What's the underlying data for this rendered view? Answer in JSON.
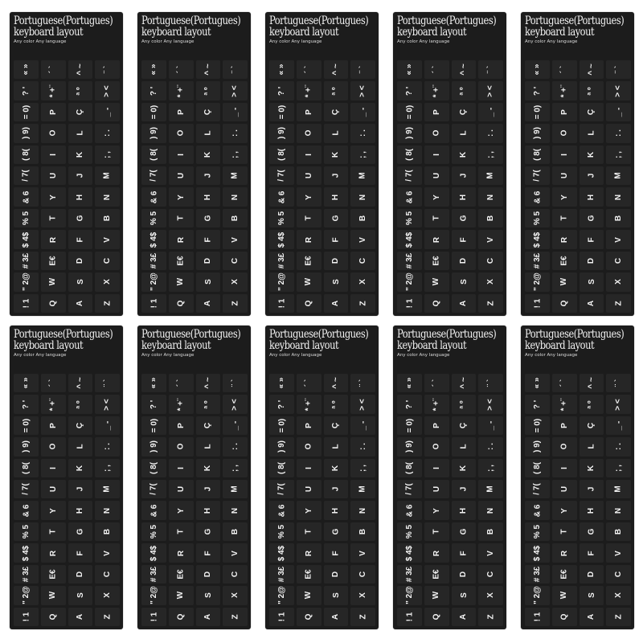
{
  "sheet": {
    "title_line1": "Portuguese(Portugues)",
    "title_line2": "keyboard layout",
    "subtitle": "Any color Any language",
    "background_color": "#1c1c1c",
    "text_color": "#f4f4f4",
    "columns": [
      [
        "« »",
        "? '",
        "= 0)",
        ") 9)",
        "( 8(",
        "/ 7(",
        "& 6",
        "% 5",
        "$ 4$",
        "# 3£",
        "\" 2@",
        "! 1"
      ],
      [
        "´ `",
        "* +¨",
        "P",
        "O",
        "I",
        "U",
        "Y",
        "T",
        "R",
        "E€",
        "W",
        "Q"
      ],
      [
        "^ ~",
        "ª º",
        "Ç",
        "L",
        "K",
        "J",
        "H",
        "G",
        "F",
        "D",
        "S",
        "A"
      ],
      [
        "¨ `",
        "> <",
        "_ -",
        ": .",
        "; ,",
        "M",
        "N",
        "B",
        "V",
        "C",
        "X",
        "Z"
      ]
    ]
  },
  "sheet_count": 10
}
